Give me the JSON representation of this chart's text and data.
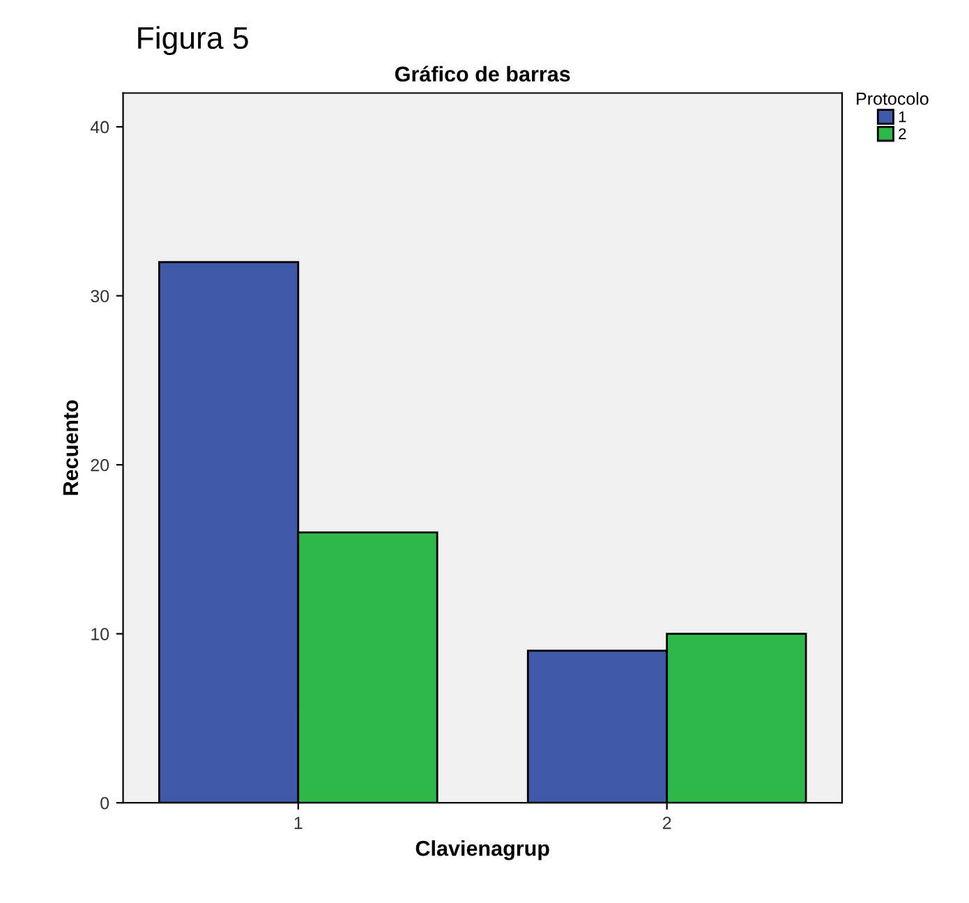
{
  "chart_data": {
    "type": "bar",
    "title": "Gráfico de barras",
    "xlabel": "Clavienagrup",
    "ylabel": "Recuento",
    "legend_title": "Protocolo",
    "categories": [
      "1",
      "2"
    ],
    "series": [
      {
        "name": "1",
        "color": "#3f58a8",
        "values": [
          32,
          9
        ]
      },
      {
        "name": "2",
        "color": "#2eb84a",
        "values": [
          16,
          10
        ]
      }
    ],
    "ylim": [
      0,
      42
    ],
    "yticks": [
      0,
      10,
      20,
      30,
      40
    ],
    "grid": false,
    "legend": "top right",
    "annotations": [
      "Figura 5"
    ]
  }
}
